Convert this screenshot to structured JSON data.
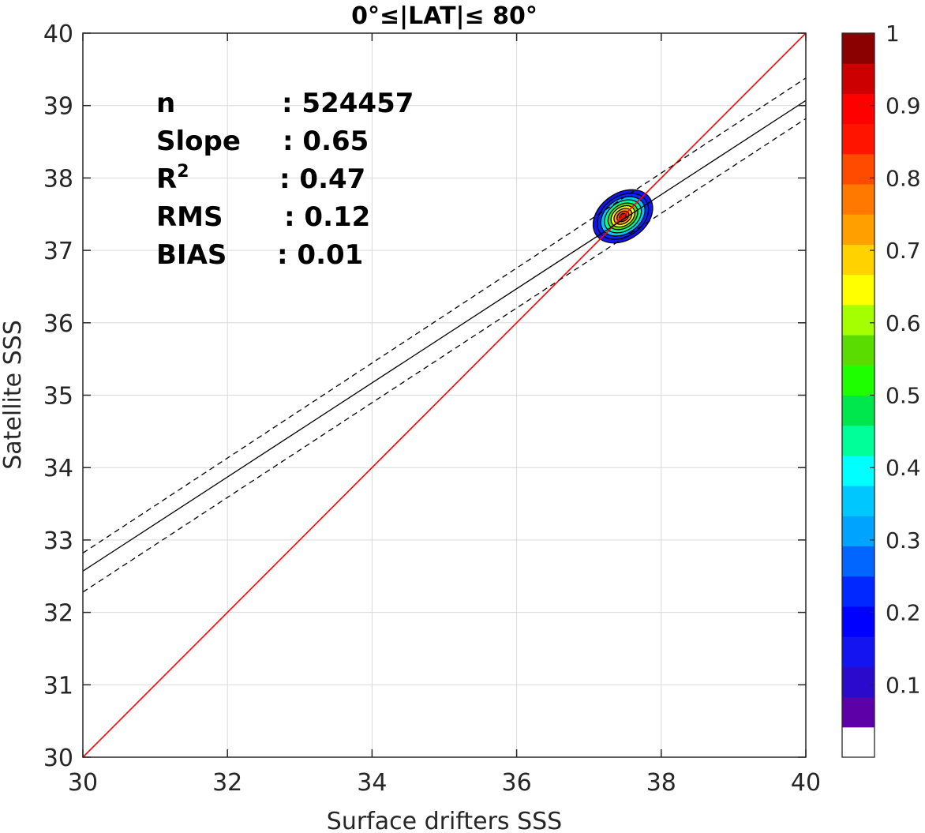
{
  "chart_data": {
    "type": "scatter",
    "title": "0°≤|LAT|≤ 80°",
    "xlabel": "Surface drifters SSS",
    "ylabel": "Satellite SSS",
    "xlim": [
      30,
      40
    ],
    "ylim": [
      30,
      40
    ],
    "xticks": [
      "30",
      "32",
      "34",
      "36",
      "38",
      "40"
    ],
    "yticks": [
      "30",
      "31",
      "32",
      "33",
      "34",
      "35",
      "36",
      "37",
      "38",
      "39",
      "40"
    ],
    "grid": true,
    "stats": [
      {
        "label": "n",
        "value": ": 524457"
      },
      {
        "label": "Slope",
        "value": ": 0.65"
      },
      {
        "label": "R",
        "sup": "2",
        "value": ": 0.47"
      },
      {
        "label": "RMS",
        "value": ": 0.12"
      },
      {
        "label": "BIAS",
        "value": ": 0.01"
      }
    ],
    "lines": [
      {
        "role": "identity",
        "color": "#ff0000",
        "style": "solid",
        "x": [
          30,
          40
        ],
        "y": [
          30,
          40
        ]
      },
      {
        "role": "fit",
        "color": "#000000",
        "style": "solid",
        "x": [
          30,
          40
        ],
        "y": [
          32.57,
          39.07
        ]
      },
      {
        "role": "fit-upper",
        "color": "#000000",
        "style": "dashed",
        "x": [
          30,
          40
        ],
        "y": [
          32.82,
          39.38
        ]
      },
      {
        "role": "fit-lower",
        "color": "#000000",
        "style": "dashed",
        "x": [
          30,
          40
        ],
        "y": [
          32.28,
          38.82
        ]
      }
    ],
    "density": {
      "center": [
        37.47,
        37.47
      ],
      "outer_radius": [
        0.45,
        0.32
      ],
      "peak": 1
    },
    "colorbar": {
      "range": [
        0,
        1
      ],
      "tick_labels": [
        "0.1",
        "0.2",
        "0.3",
        "0.4",
        "0.5",
        "0.6",
        "0.7",
        "0.8",
        "0.9",
        "1"
      ],
      "colors": [
        "#ffffff",
        "#5e00a8",
        "#2b0acb",
        "#1414f0",
        "#0000ff",
        "#0028ff",
        "#0066ff",
        "#00a4ff",
        "#00c8ff",
        "#00ffff",
        "#00ff99",
        "#00e64d",
        "#1eff00",
        "#5bdc00",
        "#a5ff00",
        "#ffff00",
        "#ffd200",
        "#ffa000",
        "#ff7800",
        "#ff4b00",
        "#ff1400",
        "#ff0000",
        "#cc0000",
        "#8b0000"
      ]
    }
  }
}
